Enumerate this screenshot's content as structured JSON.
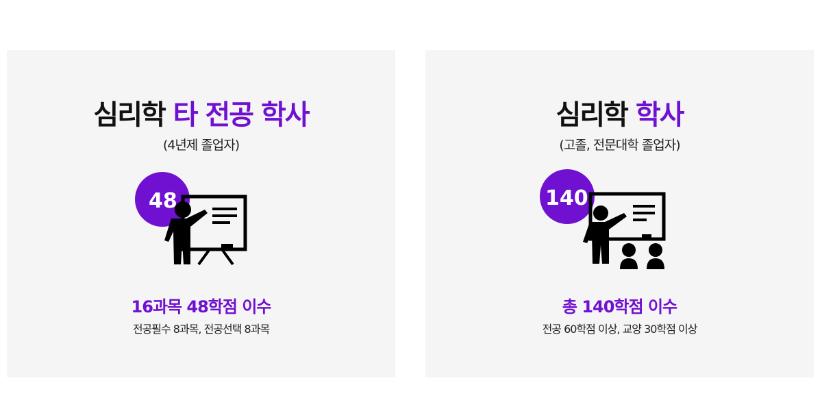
{
  "cards": [
    {
      "title_main": "심리학",
      "title_highlight": "타 전공 학사",
      "subtitle": "(4년제 졸업자)",
      "badge": "48",
      "icon": "teacher-board-icon",
      "highlight": "16과목 48학점 이수",
      "description": "전공필수 8과목, 전공선택 8과목"
    },
    {
      "title_main": "심리학",
      "title_highlight": "학사",
      "subtitle": "(고졸, 전문대학 졸업자)",
      "badge": "140",
      "icon": "teacher-class-icon",
      "highlight": "총 140학점 이수",
      "description": "전공 60학점 이상, 교양 30학점 이상"
    }
  ],
  "colors": {
    "accent": "#7010d0",
    "card_bg": "#f5f5f5"
  }
}
